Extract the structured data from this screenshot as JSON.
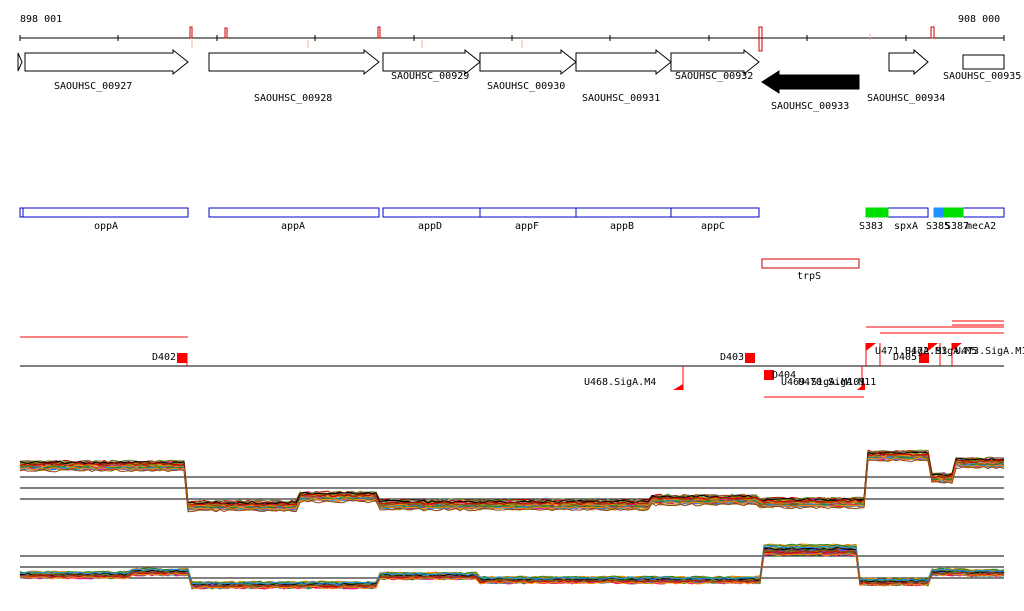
{
  "ruler": {
    "start_label": "898 001",
    "end_label": "908 000"
  },
  "genes": [
    {
      "id": "SAOUHSC_00927",
      "strand": "+"
    },
    {
      "id": "SAOUHSC_00928",
      "strand": "+"
    },
    {
      "id": "SAOUHSC_00929",
      "strand": "+"
    },
    {
      "id": "SAOUHSC_00930",
      "strand": "+"
    },
    {
      "id": "SAOUHSC_00931",
      "strand": "+"
    },
    {
      "id": "SAOUHSC_00932",
      "strand": "+"
    },
    {
      "id": "SAOUHSC_00933",
      "strand": "-"
    },
    {
      "id": "SAOUHSC_00934",
      "strand": "+"
    },
    {
      "id": "SAOUHSC_00935",
      "strand": "+"
    }
  ],
  "gene_names": [
    "oppA",
    "appA",
    "appD",
    "appF",
    "appB",
    "appC",
    "spxA",
    "mecA2"
  ],
  "sigma_sites": [
    "S383",
    "S385",
    "S387"
  ],
  "antisense_gene": "trpS",
  "transcripts": {
    "down": [
      "D402",
      "D403",
      "D404",
      "D405"
    ],
    "up": [
      "U468.SigA.M4",
      "U469.SigA.M101",
      "U470.SigA.M11",
      "U471.SigA.M3",
      "U472.SigA.M5",
      "U473.SigA.M12"
    ]
  },
  "colors": {
    "gene_box": "#0000cc",
    "sigma_site": "#00e000",
    "sigma_site_alt": "#1e90ff",
    "transcript": "#ff0000",
    "antisense": "#cc0000"
  }
}
